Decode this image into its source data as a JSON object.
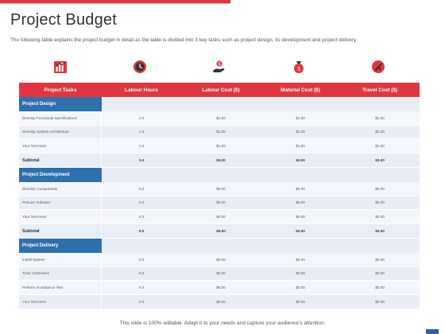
{
  "page": {
    "title": "Project Budget",
    "subtitle": "The following table explains the project budget in detail as the table is divided into 3 key tasks such as project design, its development and project delivery",
    "footer": "This slide is 100% editable. Adapt it to your needs and capture your audience's attention."
  },
  "icons": [
    "chart-bars-icon",
    "clock-icon",
    "hand-money-icon",
    "money-bag-icon",
    "airplane-icon"
  ],
  "colors": {
    "accent": "#e2363f",
    "section": "#2e6fae",
    "row_light": "#f4f6fb",
    "row_dark": "#e9edf6"
  },
  "table": {
    "headers": [
      "Project Tasks",
      "Labour Hours",
      "Labour Cost ($)",
      "Material Cost ($)",
      "Travel Cost ($)"
    ],
    "sections": [
      {
        "name": "Project Design",
        "rows": [
          [
            "Develop Functional Specifications",
            "1.0",
            "$1.00",
            "$1.00",
            "$1.00"
          ],
          [
            "Develop System Architecture",
            "1.0",
            "$1.00",
            "$1.00",
            "$1.00"
          ],
          [
            "Your Text Here",
            "1.0",
            "$1.00",
            "$1.00",
            "$1.00"
          ]
        ],
        "subtotal": [
          "Subtotal",
          "3.0",
          "$3.00",
          "$3.00",
          "$3.00"
        ]
      },
      {
        "name": "Project Development",
        "rows": [
          [
            "Develop Components",
            "0.0",
            "$0.00",
            "$0.00",
            "$0.00"
          ],
          [
            "Procure Software",
            "0.0",
            "$0.00",
            "$0.00",
            "$0.00"
          ],
          [
            "Your Text Here",
            "0.0",
            "$0.00",
            "$0.00",
            "$0.00"
          ]
        ],
        "subtotal": [
          "Subtotal",
          "0.0",
          "$0.00",
          "$0.00",
          "$0.00"
        ]
      },
      {
        "name": "Project Delivery",
        "rows": [
          [
            "Install System",
            "0.0",
            "$0.00",
            "$0.00",
            "$0.00"
          ],
          [
            "Train Customers",
            "0.0",
            "$0.00",
            "$0.00",
            "$0.00"
          ],
          [
            "Perform Acceptance Test",
            "0.0",
            "$0.00",
            "$0.00",
            "$0.00"
          ],
          [
            "Your Text Here",
            "0.0",
            "$0.00",
            "$0.00",
            "$0.00"
          ]
        ],
        "subtotal": null
      }
    ]
  }
}
